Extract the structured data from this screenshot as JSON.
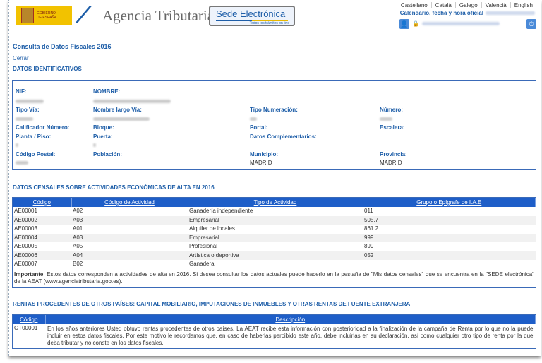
{
  "header": {
    "gov_logo_text": "GOBIERNO DE ESPAÑA",
    "agency": "Agencia Tributaria",
    "sede_title": "Sede Electrónica",
    "sede_subtitle": "Todos los trámites on line",
    "languages": [
      "Castellano",
      "Català",
      "Galego",
      "Valencià",
      "English"
    ],
    "calendar_link": "Calendario, fecha y hora oficial"
  },
  "page_title": "Consulta de Datos Fiscales 2016",
  "close_link": "Cerrar",
  "identification": {
    "title": "DATOS IDENTIFICATIVOS",
    "labels": {
      "nif": "NIF:",
      "nombre": "NOMBRE:",
      "tipo_via": "Tipo Vía:",
      "nombre_via": "Nombre largo Vía:",
      "tipo_num": "Tipo Numeración:",
      "numero": "Número:",
      "calificador": "Calificador Número:",
      "bloque": "Bloque:",
      "portal": "Portal:",
      "escalera": "Escalera:",
      "planta": "Planta / Piso:",
      "puerta": "Puerta:",
      "complementarios": "Datos Complementarios:",
      "cp": "Código Postal:",
      "poblacion": "Población:",
      "municipio": "Municipio:",
      "provincia": "Provincia:"
    },
    "values": {
      "municipio": "MADRID",
      "provincia": "MADRID"
    }
  },
  "activities": {
    "title": "DATOS CENSALES SOBRE ACTIVIDADES ECONÓMICAS DE ALTA EN 2016",
    "columns": [
      "Código",
      "Código de Actividad",
      "Tipo de Actividad",
      "Grupo o Epígrafe de I.A.E"
    ],
    "rows": [
      [
        "AE00001",
        "A02",
        "Ganadería independiente",
        "011"
      ],
      [
        "AE00002",
        "A03",
        "Empresarial",
        "505.7"
      ],
      [
        "AE00003",
        "A01",
        "Alquiler de locales",
        "861.2"
      ],
      [
        "AE00004",
        "A03",
        "Empresarial",
        "999"
      ],
      [
        "AE00005",
        "A05",
        "Profesional",
        "899"
      ],
      [
        "AE00006",
        "A04",
        "Artística o deportiva",
        "052"
      ],
      [
        "AE00007",
        "B02",
        "Ganadera",
        ""
      ]
    ],
    "note_bold": "Importante",
    "note": ": Estos datos corresponden a actividades de alta en 2016. Si desea consultar los datos actuales puede hacerlo en la pestaña de \"Mis datos censales\" que se encuentra en la \"SEDE electrónica\" de la AEAT (www.agenciatributaria.gob.es)."
  },
  "foreign": {
    "title": "RENTAS PROCEDENTES DE OTROS PAÍSES: CAPITAL MOBILIARIO, IMPUTACIONES DE INMUEBLES Y OTRAS RENTAS DE FUENTE EXTRANJERA",
    "columns": [
      "Código",
      "Descripción"
    ],
    "rows": [
      [
        "OT00001",
        "En los años anteriores Usted obtuvo rentas procedentes de otros países. La AEAT recibe esta información con posterioridad a la finalización de la campaña de Renta por lo que no la puede incluir en estos datos fiscales. Por este motivo le recordamos que, en caso de haberlas percibido este año, debe incluirlas en su declaración, así como cualquier otro tipo de renta por la que deba tributar y no conste en los datos fiscales."
      ]
    ]
  }
}
